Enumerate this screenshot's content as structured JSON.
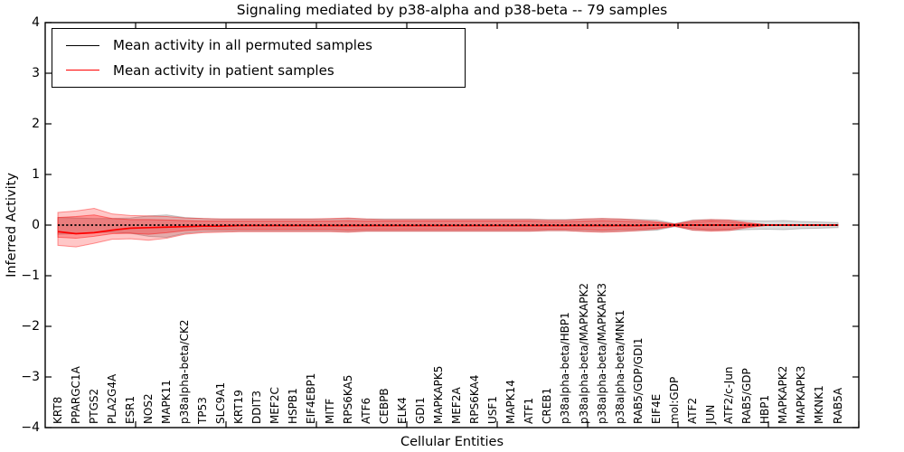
{
  "title": "Signaling mediated by p38-alpha and p38-beta -- 79 samples",
  "axes": {
    "xlabel": "Cellular Entities",
    "ylabel": "Inferred Activity",
    "y_tick_labels": [
      "4",
      "3",
      "2",
      "1",
      "0",
      "−1",
      "−2",
      "−3",
      "−4"
    ]
  },
  "chart_data": {
    "type": "line",
    "title": "Signaling mediated by p38-alpha and p38-beta -- 79 samples",
    "xlabel": "Cellular Entities",
    "ylabel": "Inferred Activity",
    "ylim": [
      -4,
      4
    ],
    "grid": false,
    "legend_position": "upper left",
    "categories": [
      "KRT8",
      "PPARGC1A",
      "PTGS2",
      "PLA2G4A",
      "ESR1",
      "NOS2",
      "MAPK11",
      "p38alpha-beta/CK2",
      "TP53",
      "SLC9A1",
      "KRT19",
      "DDIT3",
      "MEF2C",
      "HSPB1",
      "EIF4EBP1",
      "MITF",
      "RPS6KA5",
      "ATF6",
      "CEBPB",
      "ELK4",
      "GDI1",
      "MAPKAPK5",
      "MEF2A",
      "RPS6KA4",
      "USF1",
      "MAPK14",
      "ATF1",
      "CREB1",
      "p38alpha-beta/HBP1",
      "p38alpha-beta/MAPKAPK2",
      "p38alpha-beta/MAPKAPK3",
      "p38alpha-beta/MNK1",
      "RAB5/GDP/GDI1",
      "EIF4E",
      "mol:GDP",
      "ATF2",
      "JUN",
      "ATF2/c-Jun",
      "RAB5/GDP",
      "HBP1",
      "MAPKAPK2",
      "MAPKAPK3",
      "MKNK1",
      "RAB5A"
    ],
    "series": [
      {
        "name": "Mean activity in all permuted samples",
        "color": "#000000",
        "linestyle": "dashed",
        "values": [
          0,
          0,
          0,
          0,
          0,
          0,
          0,
          0,
          0,
          0,
          0,
          0,
          0,
          0,
          0,
          0,
          0,
          0,
          0,
          0,
          0,
          0,
          0,
          0,
          0,
          0,
          0,
          0,
          0,
          0,
          0,
          0,
          0,
          0,
          0,
          0,
          0,
          0,
          0,
          0,
          0,
          0,
          0,
          0
        ]
      },
      {
        "name": "Mean activity in patient samples",
        "color": "#ff0000",
        "linestyle": "solid",
        "values": [
          -0.13,
          -0.17,
          -0.15,
          -0.1,
          -0.06,
          -0.05,
          -0.04,
          -0.03,
          -0.02,
          -0.02,
          -0.01,
          -0.01,
          -0.01,
          -0.01,
          -0.01,
          -0.01,
          -0.01,
          -0.01,
          -0.01,
          -0.01,
          -0.01,
          -0.01,
          -0.01,
          -0.01,
          -0.01,
          -0.01,
          -0.01,
          -0.01,
          -0.01,
          -0.01,
          -0.01,
          -0.01,
          -0.01,
          0,
          0,
          0,
          0,
          0,
          0,
          0,
          0,
          0,
          0,
          0
        ]
      }
    ],
    "bands": [
      {
        "name": "permuted-samples-range",
        "color": "#888888",
        "alpha": 0.3,
        "upper": [
          0.15,
          0.14,
          0.13,
          0.13,
          0.14,
          0.18,
          0.2,
          0.15,
          0.13,
          0.12,
          0.12,
          0.12,
          0.12,
          0.12,
          0.12,
          0.12,
          0.13,
          0.12,
          0.12,
          0.12,
          0.12,
          0.12,
          0.12,
          0.12,
          0.12,
          0.12,
          0.12,
          0.11,
          0.11,
          0.12,
          0.13,
          0.12,
          0.11,
          0.1,
          0.03,
          0.1,
          0.11,
          0.1,
          0.09,
          0.08,
          0.09,
          0.07,
          0.06,
          0.05
        ],
        "lower": [
          -0.18,
          -0.17,
          -0.15,
          -0.14,
          -0.16,
          -0.22,
          -0.24,
          -0.16,
          -0.13,
          -0.12,
          -0.12,
          -0.12,
          -0.12,
          -0.12,
          -0.12,
          -0.12,
          -0.13,
          -0.12,
          -0.12,
          -0.12,
          -0.12,
          -0.12,
          -0.12,
          -0.12,
          -0.12,
          -0.12,
          -0.12,
          -0.11,
          -0.11,
          -0.12,
          -0.13,
          -0.12,
          -0.11,
          -0.1,
          -0.03,
          -0.1,
          -0.11,
          -0.1,
          -0.09,
          -0.08,
          -0.09,
          -0.07,
          -0.06,
          -0.05
        ]
      },
      {
        "name": "patient-samples-range-outer",
        "color": "#ff0000",
        "alpha": 0.22,
        "upper": [
          0.25,
          0.28,
          0.33,
          0.22,
          0.19,
          0.18,
          0.17,
          0.14,
          0.13,
          0.12,
          0.12,
          0.12,
          0.12,
          0.12,
          0.12,
          0.13,
          0.14,
          0.12,
          0.11,
          0.11,
          0.11,
          0.11,
          0.11,
          0.11,
          0.11,
          0.11,
          0.11,
          0.1,
          0.1,
          0.12,
          0.13,
          0.12,
          0.1,
          0.07,
          0.02,
          0.09,
          0.11,
          0.1,
          0.05,
          0.01,
          0.01,
          0.01,
          0.01,
          0.01
        ],
        "lower": [
          -0.4,
          -0.43,
          -0.36,
          -0.28,
          -0.27,
          -0.3,
          -0.26,
          -0.18,
          -0.15,
          -0.14,
          -0.13,
          -0.13,
          -0.13,
          -0.13,
          -0.13,
          -0.13,
          -0.14,
          -0.12,
          -0.12,
          -0.12,
          -0.12,
          -0.12,
          -0.12,
          -0.12,
          -0.12,
          -0.12,
          -0.12,
          -0.11,
          -0.11,
          -0.13,
          -0.14,
          -0.13,
          -0.11,
          -0.08,
          -0.02,
          -0.1,
          -0.12,
          -0.11,
          -0.05,
          -0.01,
          -0.01,
          -0.01,
          -0.01,
          -0.01
        ]
      },
      {
        "name": "patient-samples-range-inner",
        "color": "#ff0000",
        "alpha": 0.26,
        "upper": [
          0.15,
          0.17,
          0.2,
          0.13,
          0.11,
          0.11,
          0.1,
          0.09,
          0.08,
          0.08,
          0.08,
          0.08,
          0.08,
          0.08,
          0.08,
          0.08,
          0.09,
          0.08,
          0.08,
          0.08,
          0.08,
          0.08,
          0.08,
          0.08,
          0.08,
          0.08,
          0.08,
          0.07,
          0.07,
          0.08,
          0.09,
          0.08,
          0.07,
          0.05,
          0.015,
          0.06,
          0.08,
          0.07,
          0.03,
          0.008,
          0.008,
          0.008,
          0.008,
          0.008
        ],
        "lower": [
          -0.24,
          -0.26,
          -0.22,
          -0.17,
          -0.16,
          -0.18,
          -0.15,
          -0.11,
          -0.09,
          -0.09,
          -0.09,
          -0.09,
          -0.09,
          -0.09,
          -0.09,
          -0.09,
          -0.1,
          -0.09,
          -0.09,
          -0.09,
          -0.09,
          -0.09,
          -0.09,
          -0.09,
          -0.09,
          -0.09,
          -0.09,
          -0.08,
          -0.08,
          -0.09,
          -0.1,
          -0.09,
          -0.08,
          -0.06,
          -0.015,
          -0.07,
          -0.09,
          -0.08,
          -0.03,
          -0.008,
          -0.008,
          -0.008,
          -0.008,
          -0.008
        ]
      }
    ]
  }
}
